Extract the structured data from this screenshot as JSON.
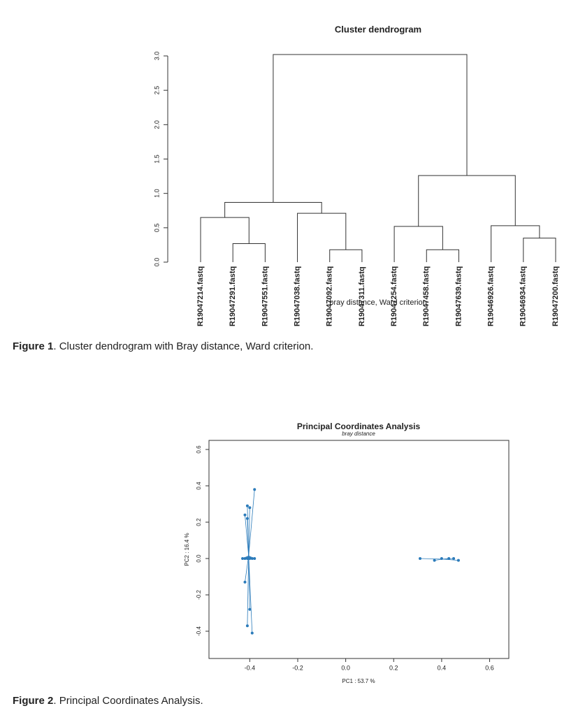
{
  "chart_data": [
    {
      "type": "dendrogram",
      "title": "Cluster dendrogram",
      "subtitle": "bray distance, Ward criterion",
      "leaves": [
        "R19047214.fastq",
        "R19047291.fastq",
        "R19047551.fastq",
        "R19047038.fastq",
        "R19047092.fastq",
        "R19047311.fastq",
        "R19047254.fastq",
        "R19047458.fastq",
        "R19047639.fastq",
        "R19046926.fastq",
        "R19046934.fastq",
        "R19047200.fastq"
      ],
      "leaf_colors": [
        "#1f78b4",
        "#2ca25f",
        "#8fd18f",
        "#f08a24",
        "#b3cde8",
        "#fdc58a",
        "#f7a6a6",
        "#e0b6b6",
        "#e31a3c",
        "#d7c0e0",
        "#9b6fb8",
        "#a8807a"
      ],
      "merges": [
        {
          "pair": [
            -2,
            -3
          ],
          "height": 0.27
        },
        {
          "pair": [
            -5,
            -6
          ],
          "height": 0.18
        },
        {
          "pair": [
            -8,
            -9
          ],
          "height": 0.18
        },
        {
          "pair": [
            -11,
            -12
          ],
          "height": 0.35
        },
        {
          "pair": [
            -1,
            1
          ],
          "height": 0.65
        },
        {
          "pair": [
            -4,
            2
          ],
          "height": 0.71
        },
        {
          "pair": [
            -7,
            3
          ],
          "height": 0.52
        },
        {
          "pair": [
            -10,
            4
          ],
          "height": 0.53
        },
        {
          "pair": [
            5,
            6
          ],
          "height": 0.87
        },
        {
          "pair": [
            7,
            8
          ],
          "height": 1.26
        },
        {
          "pair": [
            9,
            10
          ],
          "height": 3.02
        }
      ],
      "ylim": [
        0,
        3.0
      ],
      "yticks": [
        {
          "value": 0,
          "label": "0.0"
        },
        0.5,
        {
          "value": 1,
          "label": "1.0"
        },
        1.5,
        {
          "value": 2,
          "label": "2.0"
        },
        2.5,
        {
          "value": 3,
          "label": "3.0"
        }
      ]
    },
    {
      "type": "scatter",
      "title": "Principal Coordinates Analysis",
      "subtitle": "bray distance",
      "xlabel": "PC1 : 53.7 %",
      "ylabel": "PC2 : 16.4 %",
      "series": [
        {
          "color": "#2b7bba",
          "x": [
            -0.38,
            -0.41,
            -0.4,
            -0.42,
            -0.41,
            -0.42,
            -0.41,
            -0.39,
            -0.4,
            -0.43,
            -0.42,
            -0.41,
            -0.4,
            -0.39,
            -0.38
          ],
          "y": [
            0.38,
            0.29,
            0.28,
            0.24,
            0.22,
            -0.13,
            -0.37,
            -0.41,
            -0.28,
            0.0,
            0.0,
            0.0,
            0.0,
            0.0,
            0.0
          ]
        },
        {
          "color": "#2b7bba",
          "x": [
            0.31,
            0.37,
            0.4,
            0.43,
            0.45,
            0.47
          ],
          "y": [
            0.0,
            -0.01,
            0.0,
            0.0,
            0.0,
            -0.01
          ]
        }
      ],
      "xlim": [
        -0.57,
        0.68
      ],
      "ylim": [
        -0.55,
        0.65
      ],
      "xticks": [
        -0.4,
        -0.2,
        {
          "value": 0,
          "label": "0.0"
        },
        0.2,
        0.4,
        0.6
      ],
      "yticks": [
        -0.4,
        -0.2,
        {
          "value": 0,
          "label": "0.0"
        },
        0.2,
        0.4,
        0.6
      ]
    }
  ],
  "captions": [
    {
      "label": "Figure 1",
      "text": ". Cluster dendrogram with Bray distance, Ward criterion."
    },
    {
      "label": "Figure 2",
      "text": ". Principal Coordinates Analysis."
    }
  ]
}
